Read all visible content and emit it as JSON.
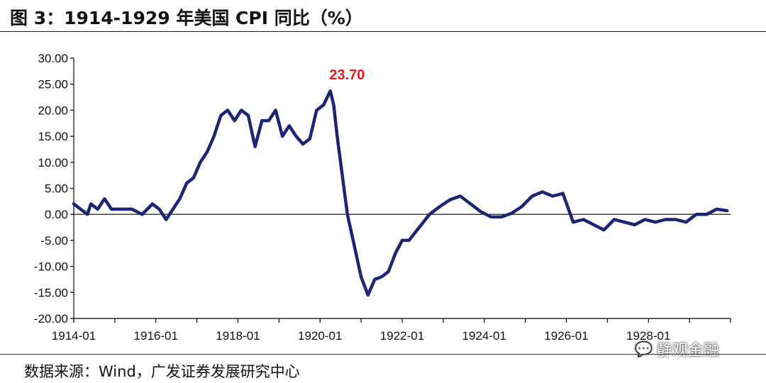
{
  "title": "图 3：1914-1929 年美国 CPI 同比（%）",
  "source": "数据来源：Wind，广发证券发展研究中心",
  "watermark": {
    "text": "静观金融",
    "icon": "wechat-icon"
  },
  "colors": {
    "line": "#1b2574",
    "peak_label": "#e8191b",
    "axis": "#000000",
    "text": "#111111"
  },
  "chart_data": {
    "type": "line",
    "title": "图 3：1914-1929 年美国 CPI 同比（%）",
    "xlabel": "",
    "ylabel": "",
    "ylim": [
      -20,
      30
    ],
    "yticks": [
      "30.00",
      "25.00",
      "20.00",
      "15.00",
      "10.00",
      "5.00",
      "0.00",
      "-5.00",
      "-10.00",
      "-15.00",
      "-20.00"
    ],
    "xticks": [
      "1914-01",
      "1916-01",
      "1918-01",
      "1920-01",
      "1922-01",
      "1924-01",
      "1926-01",
      "1928-01"
    ],
    "grid": false,
    "annotations": [
      {
        "x": "1920-06",
        "y": 23.7,
        "text": "23.70"
      }
    ],
    "series": [
      {
        "x": [
          "1914-01",
          "1914-03",
          "1914-05",
          "1914-06",
          "1914-08",
          "1914-10",
          "1914-12",
          "1915-03",
          "1915-06",
          "1915-09",
          "1915-12",
          "1916-02",
          "1916-04",
          "1916-06",
          "1916-08",
          "1916-10",
          "1916-12",
          "1917-02",
          "1917-04",
          "1917-06",
          "1917-08",
          "1917-10",
          "1917-12",
          "1918-02",
          "1918-04",
          "1918-06",
          "1918-08",
          "1918-10",
          "1918-12",
          "1919-02",
          "1919-04",
          "1919-06",
          "1919-08",
          "1919-10",
          "1919-12",
          "1920-02",
          "1920-04",
          "1920-05",
          "1920-06",
          "1920-07",
          "1920-09",
          "1920-11",
          "1921-01",
          "1921-03",
          "1921-05",
          "1921-07",
          "1921-09",
          "1921-11",
          "1922-01",
          "1922-03",
          "1922-06",
          "1922-09",
          "1922-12",
          "1923-03",
          "1923-06",
          "1923-09",
          "1923-12",
          "1924-03",
          "1924-06",
          "1924-09",
          "1924-12",
          "1925-03",
          "1925-06",
          "1925-09",
          "1925-12",
          "1926-03",
          "1926-06",
          "1926-09",
          "1926-12",
          "1927-03",
          "1927-06",
          "1927-09",
          "1927-12",
          "1928-03",
          "1928-06",
          "1928-09",
          "1928-12",
          "1929-03",
          "1929-06",
          "1929-09",
          "1929-12"
        ],
        "values": [
          2.0,
          1.0,
          0.0,
          2.0,
          1.0,
          3.0,
          1.0,
          1.0,
          1.0,
          0.0,
          2.0,
          1.0,
          -1.0,
          1.0,
          3.0,
          6.0,
          7.0,
          10.0,
          12.0,
          15.0,
          19.0,
          20.0,
          18.0,
          20.0,
          19.0,
          13.0,
          18.0,
          18.0,
          20.0,
          15.0,
          17.0,
          15.0,
          13.5,
          14.5,
          20.0,
          21.0,
          23.7,
          21.0,
          15.0,
          10.0,
          0.0,
          -6.0,
          -12.0,
          -15.5,
          -12.5,
          -12.0,
          -11.0,
          -7.5,
          -5.0,
          -5.0,
          -2.5,
          0.0,
          1.5,
          2.8,
          3.5,
          2.0,
          0.5,
          -0.5,
          -0.5,
          0.2,
          1.5,
          3.5,
          4.3,
          3.5,
          4.0,
          -1.5,
          -1.0,
          -2.0,
          -3.0,
          -1.0,
          -1.5,
          -2.0,
          -1.0,
          -1.5,
          -1.0,
          -1.0,
          -1.5,
          0.0,
          0.0,
          1.0,
          0.7
        ]
      }
    ]
  }
}
